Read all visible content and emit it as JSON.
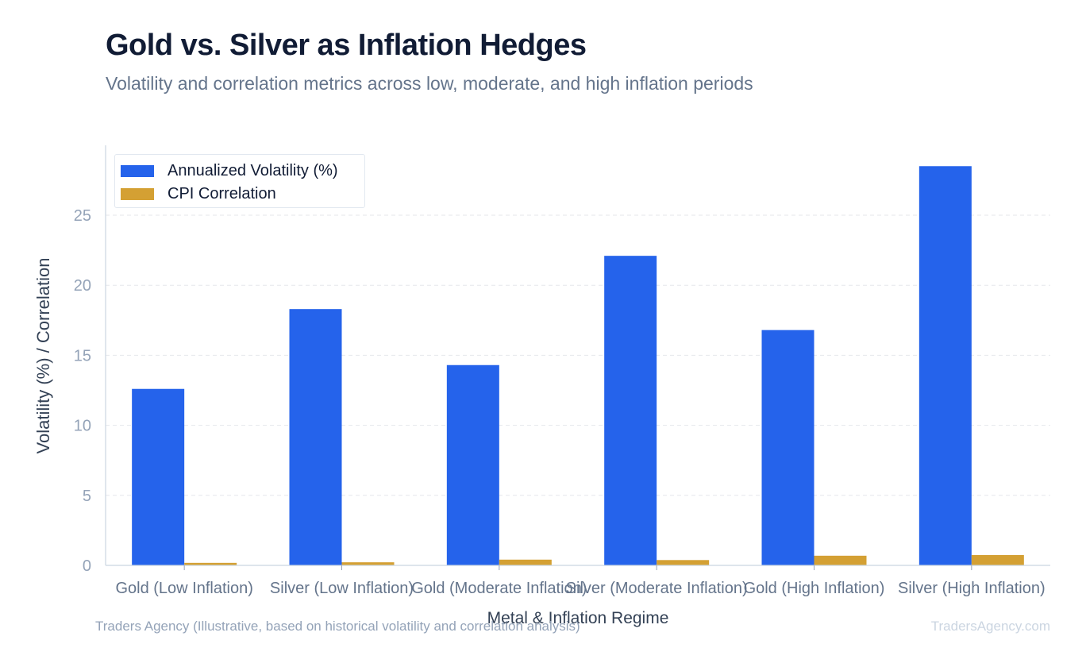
{
  "title": "Gold vs. Silver as Inflation Hedges",
  "subtitle": "Volatility and correlation metrics across low, moderate, and high inflation periods",
  "footer": {
    "source": "Traders Agency (Illustrative, based on historical volatility and correlation analysis)",
    "brand": "TradersAgency.com"
  },
  "chart_data": {
    "type": "bar",
    "xlabel": "Metal & Inflation Regime",
    "ylabel": "Volatility (%) / Correlation",
    "categories": [
      "Gold (Low Inflation)",
      "Silver (Low Inflation)",
      "Gold (Moderate Inflation)",
      "Silver (Moderate Inflation)",
      "Gold (High Inflation)",
      "Silver (High Inflation)"
    ],
    "series": [
      {
        "name": "Annualized Volatility (%)",
        "color": "#2563eb",
        "values": [
          12.6,
          18.3,
          14.3,
          22.1,
          16.8,
          28.5
        ]
      },
      {
        "name": "CPI Correlation",
        "color": "#d4a033",
        "values": [
          0.18,
          0.22,
          0.41,
          0.38,
          0.69,
          0.74
        ]
      }
    ],
    "ylim": [
      0,
      30
    ],
    "yticks": [
      0,
      5,
      10,
      15,
      20,
      25
    ],
    "grid": true,
    "legend_position": "top-left"
  }
}
